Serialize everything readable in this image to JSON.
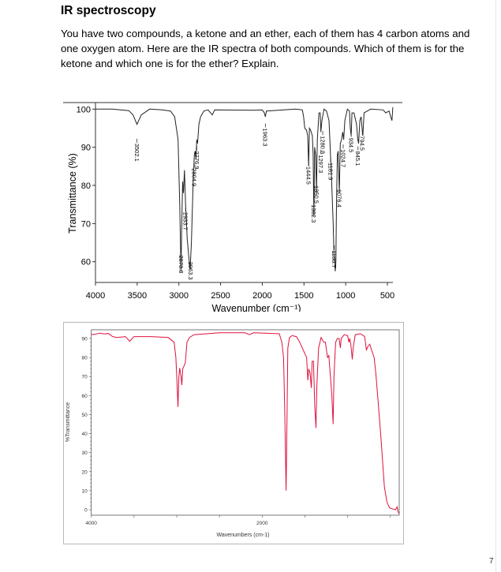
{
  "title": "IR spectroscopy",
  "question": "You have two compounds, a ketone and an ether, each of them has 4 carbon atoms and one oxygen atom. Here are the IR spectra of both compounds. Which of them is for the ketone and which one is for the ether? Explain.",
  "page_number": "7",
  "chart_data": [
    {
      "type": "line",
      "xlabel": "Wavenumber (cm⁻¹)",
      "ylabel": "Transmittance (%)",
      "xlim": [
        4000,
        450
      ],
      "ylim": [
        55,
        101
      ],
      "x_reversed": true,
      "x_ticks": [
        "4000",
        "3500",
        "3000",
        "2500",
        "2000",
        "1500",
        "1000",
        "500"
      ],
      "y_ticks": [
        "60",
        "70",
        "80",
        "90",
        "100"
      ],
      "line_color": "#222222",
      "grid": false,
      "series": [
        {
          "points": [
            [
              4000,
              100
            ],
            [
              3800,
              100
            ],
            [
              3600,
              99.6
            ],
            [
              3550,
              98.5
            ],
            [
              3502,
              96
            ],
            [
              3450,
              98.5
            ],
            [
              3350,
              100
            ],
            [
              3200,
              99.8
            ],
            [
              3100,
              99.5
            ],
            [
              3050,
              98
            ],
            [
              3010,
              92
            ],
            [
              2990,
              75
            ],
            [
              2975,
              57.5
            ],
            [
              2965,
              70
            ],
            [
              2955,
              81
            ],
            [
              2945,
              78
            ],
            [
              2933,
              84
            ],
            [
              2920,
              75
            ],
            [
              2900,
              66
            ],
            [
              2880,
              61
            ],
            [
              2865,
              58
            ],
            [
              2850,
              65
            ],
            [
              2830,
              80
            ],
            [
              2815,
              88
            ],
            [
              2805,
              89
            ],
            [
              2795,
              87
            ],
            [
              2785,
              92
            ],
            [
              2776,
              91
            ],
            [
              2760,
              96
            ],
            [
              2740,
              98
            ],
            [
              2700,
              99.5
            ],
            [
              2650,
              99.8
            ],
            [
              2620,
              99
            ],
            [
              2600,
              98.5
            ],
            [
              2570,
              99.8
            ],
            [
              2100,
              99.7
            ],
            [
              2000,
              99.8
            ],
            [
              1975,
              99
            ],
            [
              1963,
              98
            ],
            [
              1950,
              99.5
            ],
            [
              1600,
              100
            ],
            [
              1520,
              99.8
            ],
            [
              1505,
              98
            ],
            [
              1490,
              95
            ],
            [
              1470,
              94.5
            ],
            [
              1455,
              93
            ],
            [
              1444,
              85
            ],
            [
              1435,
              95
            ],
            [
              1420,
              94.5
            ],
            [
              1400,
              93
            ],
            [
              1390,
              88
            ],
            [
              1382,
              72
            ],
            [
              1372,
              90
            ],
            [
              1360,
              88
            ],
            [
              1350,
              78
            ],
            [
              1340,
              92
            ],
            [
              1320,
              99
            ],
            [
              1305,
              99
            ],
            [
              1297,
              94
            ],
            [
              1285,
              97
            ],
            [
              1260,
              100
            ],
            [
              1230,
              99.5
            ],
            [
              1200,
              97
            ],
            [
              1182,
              88
            ],
            [
              1170,
              82
            ],
            [
              1150,
              70
            ],
            [
              1140,
              62
            ],
            [
              1125,
              57.5
            ],
            [
              1118,
              60
            ],
            [
              1110,
              75
            ],
            [
              1100,
              88
            ],
            [
              1090,
              89
            ],
            [
              1076,
              78
            ],
            [
              1065,
              91
            ],
            [
              1050,
              92
            ],
            [
              1035,
              94
            ],
            [
              1024,
              92
            ],
            [
              1010,
              97
            ],
            [
              980,
              100
            ],
            [
              955,
              99.5
            ],
            [
              945,
              95
            ],
            [
              934,
              93
            ],
            [
              925,
              99
            ],
            [
              900,
              99
            ],
            [
              870,
              96
            ],
            [
              855,
              92
            ],
            [
              845,
              91
            ],
            [
              830,
              97
            ],
            [
              815,
              98
            ],
            [
              800,
              94
            ],
            [
              794,
              93
            ],
            [
              780,
              99
            ],
            [
              700,
              100
            ],
            [
              550,
              99.8
            ],
            [
              520,
              99
            ],
            [
              480,
              99.5
            ],
            [
              460,
              98
            ],
            [
              445,
              97
            ],
            [
              435,
              100.5
            ]
          ]
        }
      ],
      "peak_labels": [
        {
          "text": "3502.1",
          "x": 3502
        },
        {
          "text": "2878.8",
          "x": 2975
        },
        {
          "text": "2963.3",
          "x": 2860
        },
        {
          "text": "2933.7",
          "x": 2920
        },
        {
          "text": "2804.9",
          "x": 2815
        },
        {
          "text": "2776.9",
          "x": 2785
        },
        {
          "text": "1963.3",
          "x": 1963
        },
        {
          "text": "1444.5",
          "x": 1444
        },
        {
          "text": "1382.3",
          "x": 1382
        },
        {
          "text": "1350.5",
          "x": 1350
        },
        {
          "text": "1297.3",
          "x": 1297
        },
        {
          "text": "1280.8",
          "x": 1275
        },
        {
          "text": "1181.9",
          "x": 1182
        },
        {
          "text": "1188.7",
          "x": 1136
        },
        {
          "text": "1076.4",
          "x": 1076
        },
        {
          "text": "1024.7",
          "x": 1030
        },
        {
          "text": "934.5",
          "x": 934
        },
        {
          "text": "845.1",
          "x": 852
        },
        {
          "text": "794.5",
          "x": 800
        }
      ]
    },
    {
      "type": "line",
      "xlabel": "Wavenumbers (cm-1)",
      "ylabel": "%Transmittance",
      "xlim": [
        4000,
        396
      ],
      "ylim": [
        -3,
        94
      ],
      "x_reversed": true,
      "x_ticks": [
        "4000",
        "2000"
      ],
      "y_ticks": [
        "0",
        "10",
        "20",
        "30",
        "40",
        "50",
        "60",
        "70",
        "80",
        "90"
      ],
      "line_color": "#e0103c",
      "grid": false,
      "series": [
        {
          "points": [
            [
              4000,
              92
            ],
            [
              3950,
              92.3
            ],
            [
              3900,
              92.8
            ],
            [
              3850,
              92.4
            ],
            [
              3800,
              92.6
            ],
            [
              3750,
              91
            ],
            [
              3700,
              90.5
            ],
            [
              3600,
              91
            ],
            [
              3550,
              88.5
            ],
            [
              3500,
              91
            ],
            [
              3300,
              91
            ],
            [
              3100,
              90.5
            ],
            [
              3030,
              88
            ],
            [
              3010,
              80
            ],
            [
              3000,
              70
            ],
            [
              2985,
              54
            ],
            [
              2975,
              70
            ],
            [
              2965,
              74.5
            ],
            [
              2950,
              70
            ],
            [
              2940,
              65.5
            ],
            [
              2930,
              74
            ],
            [
              2910,
              76
            ],
            [
              2900,
              77
            ],
            [
              2880,
              88
            ],
            [
              2850,
              90.5
            ],
            [
              2800,
              92
            ],
            [
              2500,
              93
            ],
            [
              2200,
              93
            ],
            [
              2150,
              92
            ],
            [
              2100,
              93
            ],
            [
              1800,
              92.5
            ],
            [
              1770,
              88
            ],
            [
              1750,
              80
            ],
            [
              1735,
              50
            ],
            [
              1720,
              10
            ],
            [
              1710,
              45
            ],
            [
              1700,
              85
            ],
            [
              1680,
              90.5
            ],
            [
              1650,
              91.5
            ],
            [
              1600,
              91
            ],
            [
              1560,
              88
            ],
            [
              1480,
              80
            ],
            [
              1465,
              68
            ],
            [
              1455,
              74
            ],
            [
              1440,
              72
            ],
            [
              1425,
              64
            ],
            [
              1415,
              78
            ],
            [
              1400,
              78
            ],
            [
              1385,
              55
            ],
            [
              1370,
              43
            ],
            [
              1360,
              65
            ],
            [
              1340,
              85
            ],
            [
              1310,
              90.5
            ],
            [
              1280,
              88
            ],
            [
              1260,
              88
            ],
            [
              1235,
              80
            ],
            [
              1220,
              81
            ],
            [
              1185,
              60
            ],
            [
              1170,
              45
            ],
            [
              1160,
              70
            ],
            [
              1140,
              88
            ],
            [
              1120,
              90
            ],
            [
              1100,
              90
            ],
            [
              1085,
              85
            ],
            [
              1075,
              90
            ],
            [
              1040,
              92
            ],
            [
              1000,
              91.5
            ],
            [
              985,
              88
            ],
            [
              975,
              90
            ],
            [
              960,
              86
            ],
            [
              945,
              79
            ],
            [
              935,
              85
            ],
            [
              910,
              92
            ],
            [
              850,
              92.5
            ],
            [
              800,
              91
            ],
            [
              780,
              84
            ],
            [
              760,
              86
            ],
            [
              740,
              87
            ],
            [
              720,
              84
            ],
            [
              690,
              80
            ],
            [
              670,
              72
            ],
            [
              640,
              55
            ],
            [
              610,
              38
            ],
            [
              590,
              25
            ],
            [
              570,
              12
            ],
            [
              540,
              4
            ],
            [
              510,
              1
            ],
            [
              480,
              0.5
            ],
            [
              440,
              0
            ],
            [
              420,
              1.5
            ],
            [
              410,
              -1
            ],
            [
              400,
              -2
            ]
          ]
        }
      ]
    }
  ]
}
